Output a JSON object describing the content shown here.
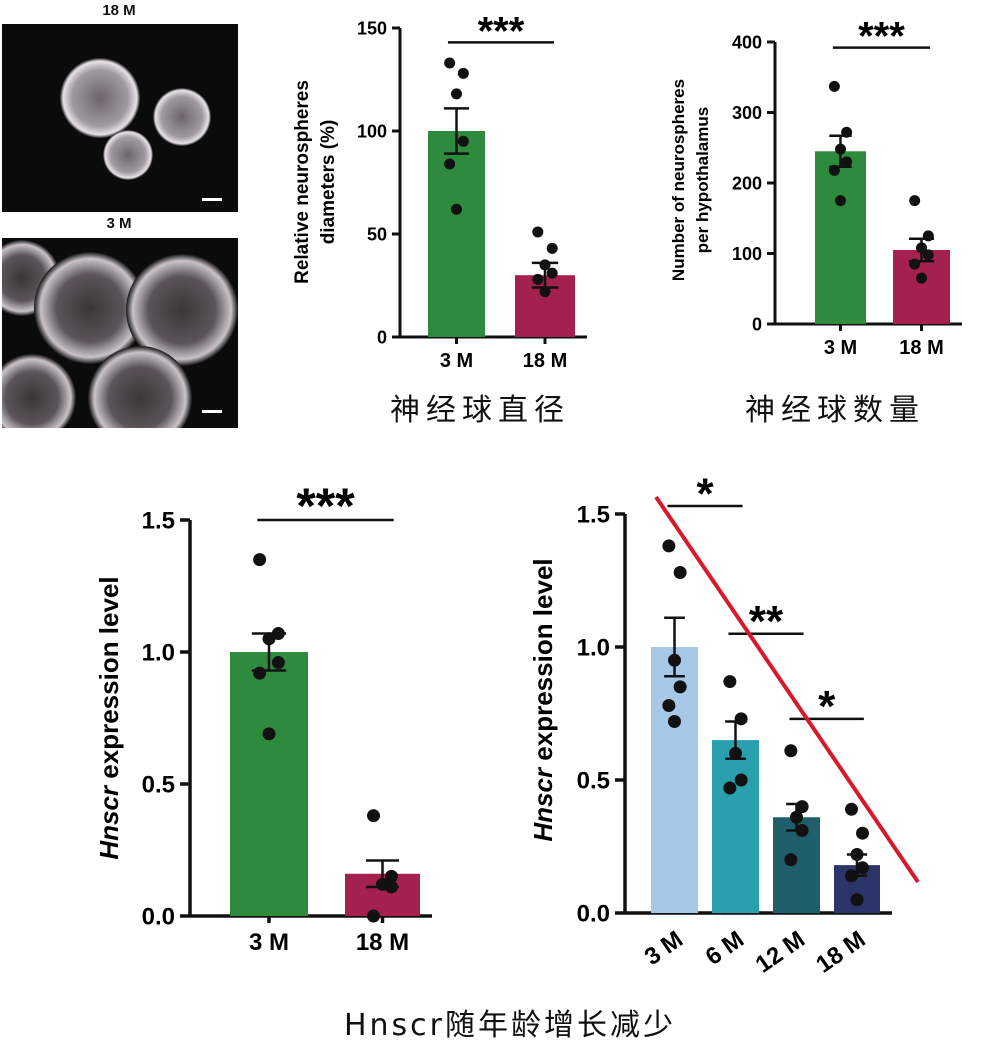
{
  "micrographs": [
    {
      "label": "18 M"
    },
    {
      "label": "3 M"
    }
  ],
  "chart_data": [
    {
      "type": "bar",
      "ylabel": "Relative neurospheres diameters (%)",
      "ylabel_lines": [
        "Relative neurospheres",
        "diameters (%)"
      ],
      "categories": [
        "3 M",
        "18 M"
      ],
      "values": [
        100,
        30
      ],
      "errors": [
        11,
        6
      ],
      "points": [
        [
          133,
          128,
          118,
          95,
          84,
          62
        ],
        [
          51,
          43,
          35,
          31,
          28,
          22
        ]
      ],
      "colors": [
        "#2e8b3e",
        "#a3204f"
      ],
      "ylim": [
        0,
        150
      ],
      "yticks": [
        0,
        50,
        100,
        150
      ],
      "significance": [
        {
          "label": "***",
          "from": 0,
          "to": 1,
          "y": 143
        }
      ],
      "caption": "神经球直径"
    },
    {
      "type": "bar",
      "ylabel": "Number of neurospheres per hypothalamus",
      "ylabel_lines": [
        "Number of neurospheres",
        "per hypothalamus"
      ],
      "categories": [
        "3 M",
        "18 M"
      ],
      "values": [
        245,
        105
      ],
      "errors": [
        22,
        16
      ],
      "points": [
        [
          337,
          272,
          248,
          230,
          218,
          175
        ],
        [
          175,
          125,
          108,
          98,
          85,
          65
        ]
      ],
      "colors": [
        "#2e8b3e",
        "#a3204f"
      ],
      "ylim": [
        0,
        400
      ],
      "yticks": [
        0,
        100,
        200,
        300,
        400
      ],
      "significance": [
        {
          "label": "***",
          "from": 0,
          "to": 1,
          "y": 392
        }
      ],
      "caption": "神经球数量"
    },
    {
      "type": "bar",
      "ylabel": "Hnscr expression level",
      "ylabel_gene": "Hnscr",
      "ylabel_rest": " expression level",
      "categories": [
        "3 M",
        "18 M"
      ],
      "values": [
        1.0,
        0.16
      ],
      "errors": [
        0.07,
        0.05
      ],
      "points": [
        [
          1.35,
          1.07,
          1.05,
          0.96,
          0.92,
          0.69
        ],
        [
          0.38,
          0.15,
          0.12,
          0.11,
          0.0
        ]
      ],
      "colors": [
        "#2e8b3e",
        "#a3204f"
      ],
      "ylim": [
        0,
        1.5
      ],
      "yticks": [
        "0.0",
        "0.5",
        "1.0",
        "1.5"
      ],
      "significance": [
        {
          "label": "***",
          "from": 0,
          "to": 1,
          "y": 1.5
        }
      ]
    },
    {
      "type": "bar",
      "ylabel": "Hnscr expression level",
      "ylabel_gene": "Hnscr",
      "ylabel_rest": " expression level",
      "categories": [
        "3 M",
        "6 M",
        "12 M",
        "18 M"
      ],
      "values": [
        1.0,
        0.65,
        0.36,
        0.18
      ],
      "errors": [
        0.11,
        0.07,
        0.05,
        0.04
      ],
      "points": [
        [
          1.38,
          1.28,
          0.95,
          0.85,
          0.78,
          0.72
        ],
        [
          0.87,
          0.73,
          0.6,
          0.5,
          0.47
        ],
        [
          0.61,
          0.4,
          0.36,
          0.31,
          0.2
        ],
        [
          0.39,
          0.3,
          0.22,
          0.17,
          0.14,
          0.05
        ]
      ],
      "colors": [
        "#a6c7e6",
        "#2a9fad",
        "#1f5f6b",
        "#2c3569"
      ],
      "ylim": [
        0,
        1.5
      ],
      "yticks": [
        "0.0",
        "0.5",
        "1.0",
        "1.5"
      ],
      "significance": [
        {
          "label": "*",
          "from": 0,
          "to": 1,
          "y": 1.53
        },
        {
          "label": "**",
          "from": 1,
          "to": 2,
          "y": 1.05
        },
        {
          "label": "*",
          "from": 2,
          "to": 3,
          "y": 0.73
        }
      ],
      "trend_line_color": "#d8192b",
      "caption": "Hnscr随年龄增长减少"
    }
  ]
}
